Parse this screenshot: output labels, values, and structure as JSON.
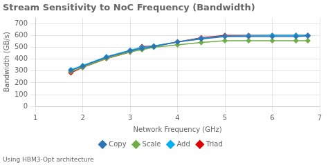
{
  "chart_data": {
    "type": "line",
    "title": "Stream Sensitivity to NoC Frequency (Bandwidth)",
    "x_label": "Network Frequency (GHz)",
    "y_label": "Bandwidth (GB/s)",
    "annotations": [
      "Using HBM3-Opt architecture"
    ],
    "x": [
      1.75,
      2.0,
      2.5,
      3.0,
      3.25,
      3.5,
      4.0,
      4.5,
      5.0,
      5.5,
      6.0,
      6.5,
      6.75
    ],
    "series": [
      {
        "name": "Copy",
        "color": "#2e75b6",
        "values": [
          305,
          340,
          415,
          470,
          490,
          505,
          545,
          570,
          590,
          590,
          590,
          590,
          595
        ]
      },
      {
        "name": "Scale",
        "color": "#70ad47",
        "values": [
          295,
          330,
          405,
          460,
          480,
          500,
          520,
          540,
          555,
          555,
          555,
          555,
          555
        ]
      },
      {
        "name": "Add",
        "color": "#00b0f0",
        "values": [
          310,
          345,
          420,
          475,
          500,
          510,
          545,
          575,
          595,
          597,
          600,
          600,
          600
        ]
      },
      {
        "name": "Triad",
        "color": "#e00000",
        "values": [
          285,
          330,
          405,
          460,
          505,
          510,
          545,
          580,
          600,
          600,
          600,
          600,
          600
        ]
      }
    ],
    "xlim": [
      1,
      7
    ],
    "xticks": [
      1,
      2,
      3,
      4,
      5,
      6,
      7
    ],
    "ylim": [
      0,
      750
    ],
    "yticks": [
      0,
      100,
      200,
      300,
      400,
      500,
      600,
      700
    ],
    "grid": true,
    "legend": "bottom",
    "marker": "diamond"
  }
}
